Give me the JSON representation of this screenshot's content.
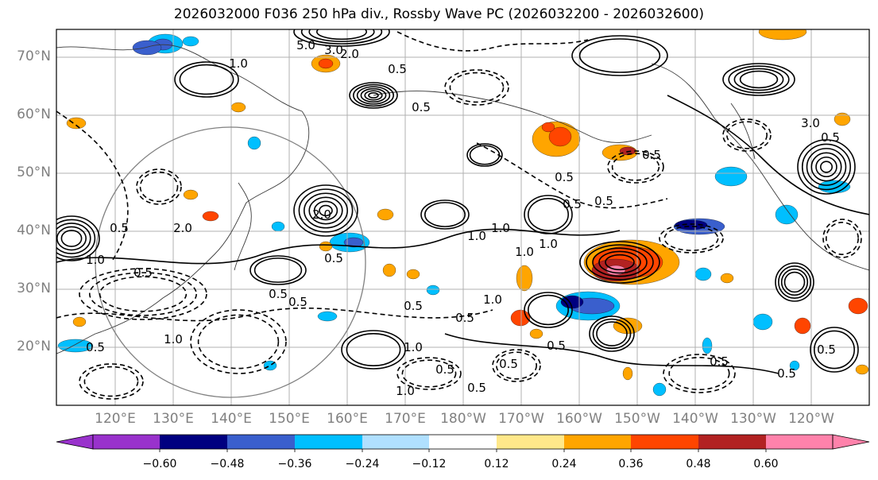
{
  "title": "2026032000 F036 250 hPa div., Rossby Wave PC (2026032200 - 2026032600)",
  "lat_labels": [
    "70°N",
    "60°N",
    "50°N",
    "40°N",
    "30°N",
    "20°N"
  ],
  "lon_labels": [
    "120°E",
    "130°E",
    "140°E",
    "150°E",
    "160°E",
    "170°E",
    "180°W",
    "170°W",
    "160°W",
    "150°W",
    "140°W",
    "130°W",
    "120°W"
  ],
  "colorbar": {
    "ticks": [
      "−0.60",
      "−0.48",
      "−0.36",
      "−0.24",
      "−0.12",
      "0.12",
      "0.24",
      "0.36",
      "0.48",
      "0.60"
    ],
    "colors": [
      "#9932CC",
      "#000080",
      "#3A5FCD",
      "#00BFFF",
      "#B0E0FF",
      "#FFFFFF",
      "#FFE88A",
      "#FFA500",
      "#FF4500",
      "#B22222",
      "#FF82AB"
    ]
  },
  "contour_labels": [
    "5.0",
    "3.0",
    "2.0",
    "1.0",
    "0.5",
    "0.5",
    "0.5",
    "0.5",
    "0.5",
    "0.5",
    "1.0",
    "1.0",
    "1.0",
    "1.0",
    "0.5",
    "2.0",
    "0.5",
    "0.5",
    "0.5",
    "0.5",
    "1.0",
    "0.5",
    "1.0",
    "0.5",
    "1.0",
    "0.5",
    "0.5",
    "0.5",
    "0.5",
    "0.5",
    "0.5",
    "1.0",
    "0.5",
    "0.5",
    "2.0",
    "1.0",
    "3.0",
    "0.5"
  ]
}
